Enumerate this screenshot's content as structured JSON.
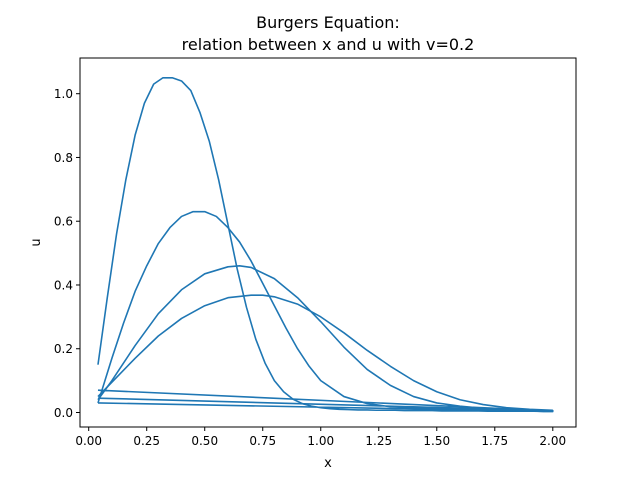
{
  "chart_data": {
    "type": "line",
    "title_line1": "Burgers Equation:",
    "title_line2": "relation between x and u with v=0.2",
    "xlabel": "x",
    "ylabel": "u",
    "xlim": [
      -0.0375,
      2.1
    ],
    "ylim": [
      -0.0455,
      1.112
    ],
    "xticks": [
      0.0,
      0.25,
      0.5,
      0.75,
      1.0,
      1.25,
      1.5,
      1.75,
      2.0
    ],
    "xtick_labels": [
      "0.00",
      "0.25",
      "0.50",
      "0.75",
      "1.00",
      "1.25",
      "1.50",
      "1.75",
      "2.00"
    ],
    "yticks": [
      0.0,
      0.2,
      0.4,
      0.6,
      0.8,
      1.0
    ],
    "ytick_labels": [
      "0.0",
      "0.2",
      "0.4",
      "0.6",
      "0.8",
      "1.0"
    ],
    "grid": false,
    "line_color": "#1f77b4",
    "series": [
      {
        "x": [
          0.04,
          0.08,
          0.12,
          0.16,
          0.2,
          0.24,
          0.28,
          0.32,
          0.36,
          0.4,
          0.44,
          0.48,
          0.52,
          0.56,
          0.6,
          0.64,
          0.68,
          0.72,
          0.76,
          0.8,
          0.84,
          0.88,
          0.92,
          0.96,
          1.0,
          1.04,
          1.08,
          1.12,
          1.16,
          1.2,
          1.24,
          1.28,
          1.32,
          1.36,
          1.4,
          1.44,
          1.48,
          1.52,
          1.56,
          1.6,
          1.64,
          1.68,
          1.72,
          1.76,
          1.8,
          1.84,
          1.88,
          1.92,
          1.96,
          2.0,
          0.04
        ],
        "y": [
          0.15,
          0.36,
          0.56,
          0.73,
          0.87,
          0.97,
          1.03,
          1.05,
          1.05,
          1.04,
          1.01,
          0.94,
          0.85,
          0.73,
          0.59,
          0.45,
          0.33,
          0.23,
          0.155,
          0.1,
          0.065,
          0.042,
          0.028,
          0.02,
          0.015,
          0.012,
          0.01,
          0.009,
          0.008,
          0.008,
          0.007,
          0.007,
          0.007,
          0.006,
          0.006,
          0.006,
          0.006,
          0.005,
          0.005,
          0.005,
          0.005,
          0.005,
          0.004,
          0.004,
          0.004,
          0.004,
          0.004,
          0.004,
          0.003,
          0.003,
          0.03
        ]
      },
      {
        "x": [
          0.04,
          0.1,
          0.15,
          0.2,
          0.25,
          0.3,
          0.35,
          0.4,
          0.45,
          0.5,
          0.55,
          0.6,
          0.65,
          0.7,
          0.75,
          0.8,
          0.85,
          0.9,
          0.95,
          1.0,
          1.1,
          1.2,
          1.3,
          1.4,
          1.5,
          1.6,
          1.7,
          1.8,
          1.9,
          2.0,
          0.04
        ],
        "y": [
          0.03,
          0.17,
          0.28,
          0.38,
          0.46,
          0.53,
          0.58,
          0.615,
          0.63,
          0.63,
          0.615,
          0.58,
          0.535,
          0.475,
          0.405,
          0.335,
          0.265,
          0.2,
          0.145,
          0.1,
          0.05,
          0.028,
          0.018,
          0.014,
          0.012,
          0.01,
          0.009,
          0.008,
          0.007,
          0.006,
          0.045
        ]
      },
      {
        "x": [
          0.04,
          0.1,
          0.2,
          0.3,
          0.4,
          0.5,
          0.6,
          0.65,
          0.7,
          0.8,
          0.9,
          1.0,
          1.1,
          1.2,
          1.3,
          1.4,
          1.5,
          1.6,
          1.7,
          1.8,
          1.9,
          2.0,
          0.04
        ],
        "y": [
          0.04,
          0.1,
          0.21,
          0.31,
          0.385,
          0.435,
          0.457,
          0.46,
          0.455,
          0.42,
          0.36,
          0.285,
          0.205,
          0.135,
          0.085,
          0.05,
          0.03,
          0.02,
          0.013,
          0.009,
          0.006,
          0.005,
          0.07
        ]
      },
      {
        "x": [
          0.04,
          0.1,
          0.2,
          0.3,
          0.4,
          0.5,
          0.6,
          0.7,
          0.75,
          0.8,
          0.9,
          1.0,
          1.1,
          1.2,
          1.3,
          1.4,
          1.5,
          1.6,
          1.7,
          1.8,
          1.9,
          2.0
        ],
        "y": [
          0.05,
          0.095,
          0.17,
          0.24,
          0.295,
          0.335,
          0.36,
          0.368,
          0.368,
          0.363,
          0.34,
          0.3,
          0.25,
          0.195,
          0.145,
          0.1,
          0.065,
          0.04,
          0.025,
          0.015,
          0.01,
          0.007
        ]
      }
    ]
  }
}
